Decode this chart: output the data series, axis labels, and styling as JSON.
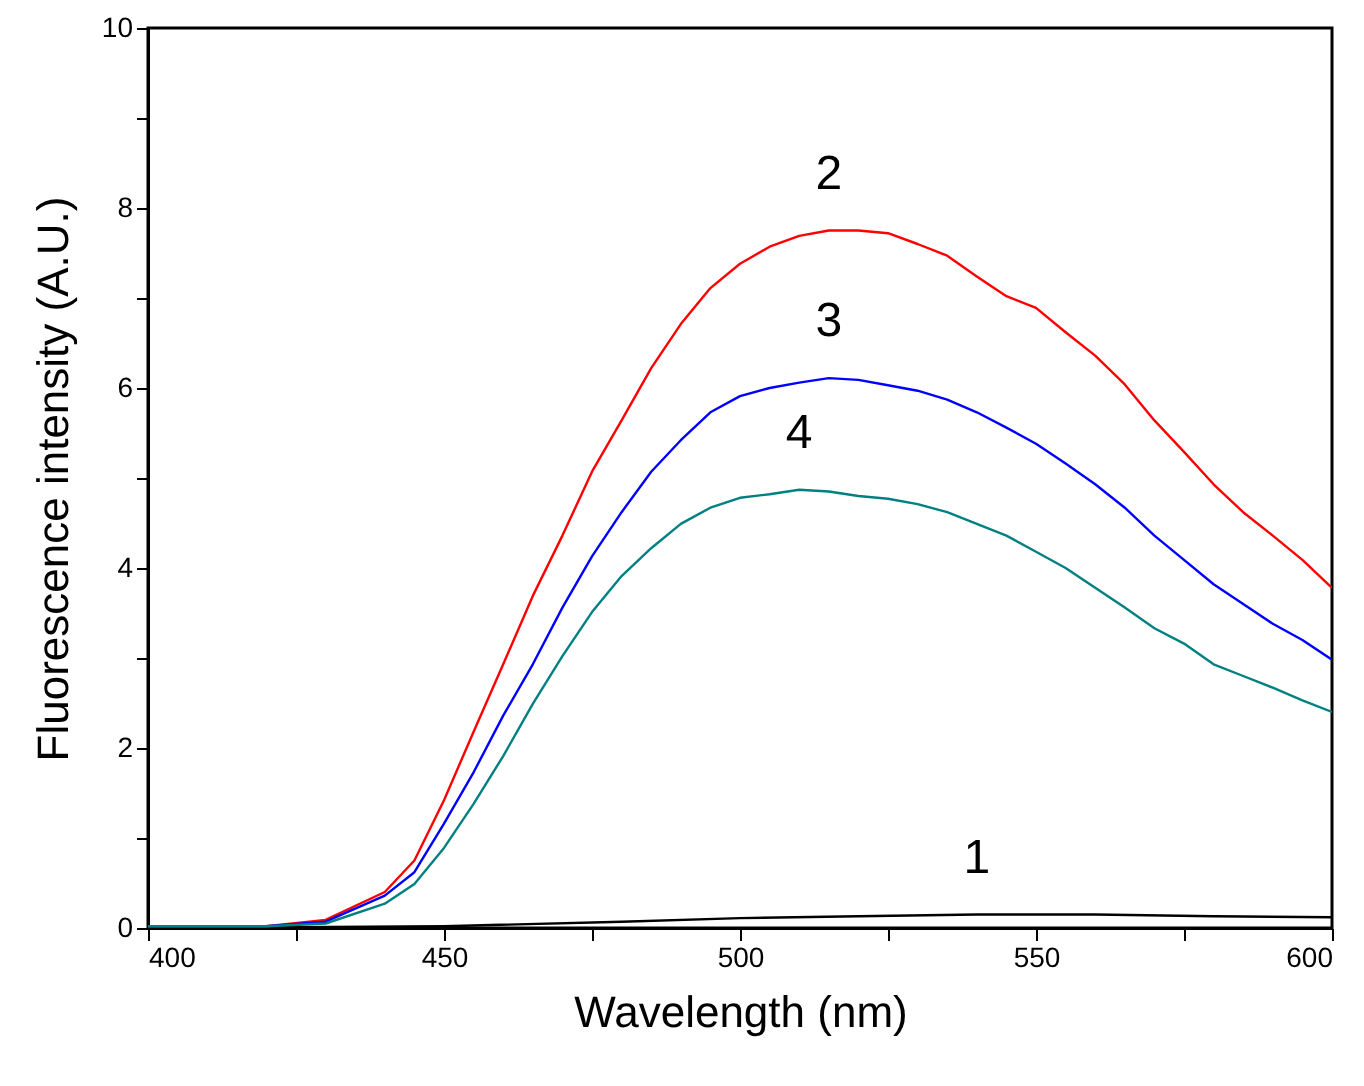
{
  "chart_data": {
    "type": "line",
    "xlabel": "Wavelength (nm)",
    "ylabel": "Fluorescence intensity (A.U.)",
    "xlim": [
      400,
      600
    ],
    "ylim": [
      0,
      10
    ],
    "xticks": [
      400,
      {
        "value": 425,
        "label": null
      },
      450,
      {
        "value": 475,
        "label": null
      },
      500,
      {
        "value": 525,
        "label": null
      },
      550,
      {
        "value": 575,
        "label": null
      },
      600
    ],
    "yticks": [
      0,
      {
        "value": 1,
        "label": null
      },
      2,
      {
        "value": 3,
        "label": null
      },
      4,
      {
        "value": 5,
        "label": null
      },
      6,
      {
        "value": 7,
        "label": null
      },
      8,
      {
        "value": 9,
        "label": null
      },
      10
    ],
    "grid": false,
    "marker": "none",
    "line_style": "solid",
    "series": [
      {
        "name": "1",
        "color": "#000000",
        "x": [
          400,
          450,
          480,
          500,
          520,
          540,
          560,
          580,
          600
        ],
        "values": [
          0.0,
          0.02,
          0.07,
          0.11,
          0.13,
          0.15,
          0.15,
          0.13,
          0.12
        ]
      },
      {
        "name": "2",
        "color": "#ff0000",
        "x": [
          400,
          420,
          430,
          440,
          445,
          450,
          455,
          460,
          465,
          470,
          475,
          480,
          485,
          490,
          495,
          500,
          505,
          510,
          515,
          520,
          525,
          530,
          535,
          540,
          545,
          550,
          555,
          560,
          565,
          570,
          575,
          580,
          585,
          590,
          595,
          600
        ],
        "values": [
          0.02,
          0.02,
          0.09,
          0.4,
          0.75,
          1.42,
          2.18,
          2.93,
          3.69,
          4.36,
          5.07,
          5.64,
          6.22,
          6.71,
          7.11,
          7.38,
          7.57,
          7.69,
          7.75,
          7.75,
          7.72,
          7.6,
          7.47,
          7.24,
          7.02,
          6.89,
          6.62,
          6.36,
          6.04,
          5.64,
          5.29,
          4.93,
          4.62,
          4.36,
          4.09,
          3.78
        ]
      },
      {
        "name": "3",
        "color": "#0000ff",
        "x": [
          400,
          420,
          430,
          440,
          445,
          450,
          455,
          460,
          465,
          470,
          475,
          480,
          485,
          490,
          495,
          500,
          505,
          510,
          515,
          520,
          525,
          530,
          535,
          540,
          545,
          550,
          555,
          560,
          565,
          570,
          575,
          580,
          585,
          590,
          595,
          600
        ],
        "values": [
          0.02,
          0.02,
          0.07,
          0.36,
          0.62,
          1.16,
          1.73,
          2.36,
          2.93,
          3.56,
          4.13,
          4.62,
          5.07,
          5.42,
          5.73,
          5.91,
          6.0,
          6.06,
          6.11,
          6.09,
          6.03,
          5.97,
          5.87,
          5.73,
          5.56,
          5.38,
          5.16,
          4.93,
          4.67,
          4.36,
          4.09,
          3.82,
          3.6,
          3.38,
          3.2,
          2.98
        ]
      },
      {
        "name": "4",
        "color": "#008080",
        "x": [
          400,
          420,
          430,
          440,
          445,
          450,
          455,
          460,
          465,
          470,
          475,
          480,
          485,
          490,
          495,
          500,
          505,
          510,
          515,
          520,
          525,
          530,
          535,
          540,
          545,
          550,
          555,
          560,
          565,
          570,
          575,
          580,
          585,
          590,
          595,
          600
        ],
        "values": [
          0.02,
          0.02,
          0.05,
          0.27,
          0.49,
          0.89,
          1.38,
          1.91,
          2.49,
          3.02,
          3.51,
          3.91,
          4.22,
          4.49,
          4.67,
          4.78,
          4.82,
          4.87,
          4.85,
          4.8,
          4.77,
          4.71,
          4.62,
          4.49,
          4.36,
          4.18,
          4.0,
          3.78,
          3.56,
          3.33,
          3.16,
          2.93,
          2.8,
          2.67,
          2.53,
          2.4
        ]
      }
    ]
  }
}
